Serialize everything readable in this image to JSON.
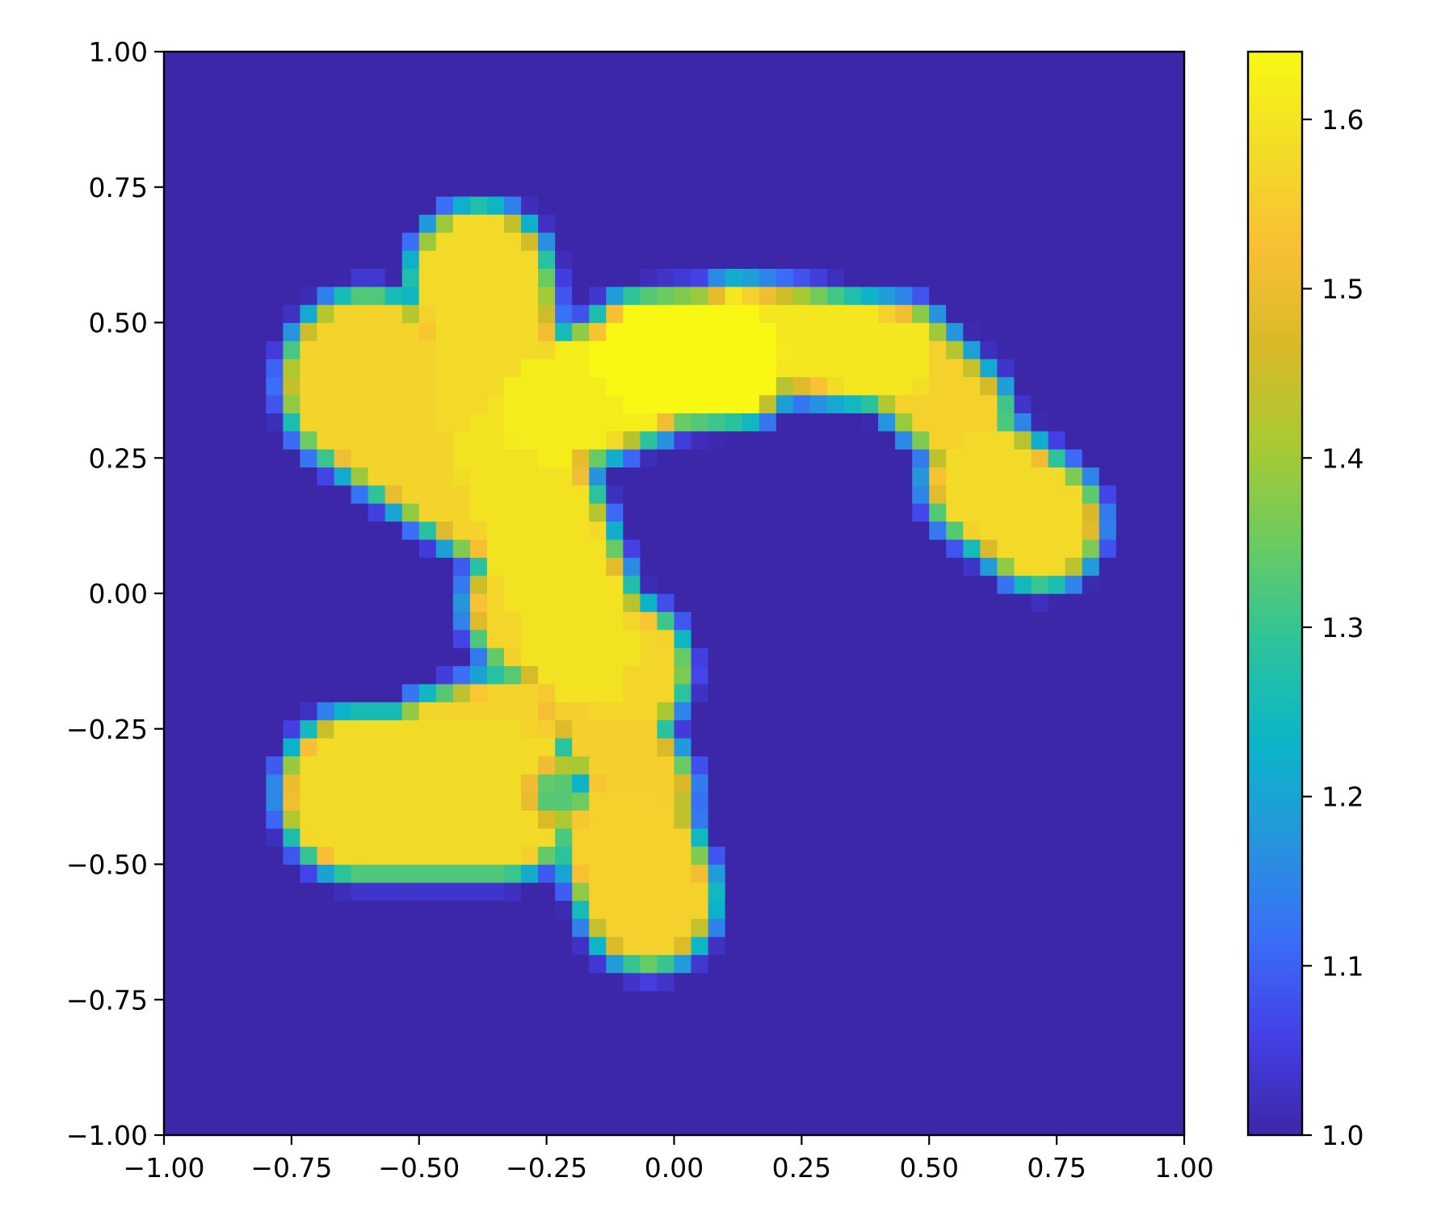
{
  "chart_data": {
    "type": "heatmap",
    "title": "",
    "xlabel": "",
    "ylabel": "",
    "xlim": [
      -1.0,
      1.0
    ],
    "ylim": [
      -1.0,
      1.0
    ],
    "grid": false,
    "x_ticks": [
      -1.0,
      -0.75,
      -0.5,
      -0.25,
      0.0,
      0.25,
      0.5,
      0.75,
      1.0
    ],
    "x_tick_labels": [
      "−1.00",
      "−0.75",
      "−0.50",
      "−0.25",
      "0.00",
      "0.25",
      "0.50",
      "0.75",
      "1.00"
    ],
    "y_ticks": [
      1.0,
      0.75,
      0.5,
      0.25,
      0.0,
      -0.25,
      -0.5,
      -0.75,
      -1.0
    ],
    "y_tick_labels": [
      "1.00",
      "0.75",
      "0.50",
      "0.25",
      "0.00",
      "−0.25",
      "−0.50",
      "−0.75",
      "−1.00"
    ],
    "colorbar": {
      "min": 1.0,
      "max": 1.64,
      "ticks": [
        1.6,
        1.5,
        1.4,
        1.3,
        1.2,
        1.1,
        1.0
      ],
      "tick_labels": [
        "1.6",
        "1.5",
        "1.4",
        "1.3",
        "1.2",
        "1.1",
        "1.0"
      ],
      "colormap": [
        "#3b27a8",
        "#4440e6",
        "#3a6ef7",
        "#2596dc",
        "#0bb5c8",
        "#2cc39b",
        "#6acb61",
        "#a9c932",
        "#d7ba28",
        "#f9bf35",
        "#f2dc26",
        "#f8f814"
      ]
    },
    "background_value": 1.0,
    "peak_value": 1.64,
    "regions": [
      {
        "type": "capsule",
        "a": [
          -0.6,
          0.39
        ],
        "b": [
          -0.34,
          0.22
        ],
        "r": 0.14,
        "v": 1.565
      },
      {
        "type": "capsule",
        "a": [
          -0.38,
          0.58
        ],
        "b": [
          -0.34,
          0.3
        ],
        "r": 0.11,
        "v": 1.575
      },
      {
        "type": "capsule",
        "a": [
          -0.32,
          0.26
        ],
        "b": [
          -0.18,
          -0.1
        ],
        "r": 0.105,
        "v": 1.595
      },
      {
        "type": "capsule",
        "a": [
          -0.24,
          0.34
        ],
        "b": [
          -0.06,
          0.41
        ],
        "r": 0.095,
        "v": 1.615
      },
      {
        "type": "capsule",
        "a": [
          -0.06,
          0.43
        ],
        "b": [
          0.12,
          0.44
        ],
        "r": 0.095,
        "v": 1.64
      },
      {
        "type": "capsule",
        "a": [
          0.12,
          0.48
        ],
        "b": [
          0.44,
          0.44
        ],
        "r": 0.07,
        "v": 1.605
      },
      {
        "type": "capsule",
        "a": [
          0.44,
          0.44
        ],
        "b": [
          0.56,
          0.33
        ],
        "r": 0.07,
        "v": 1.56
      },
      {
        "type": "capsule",
        "a": [
          -0.28,
          -0.02
        ],
        "b": [
          -0.1,
          -0.14
        ],
        "r": 0.1,
        "v": 1.57
      },
      {
        "type": "capsule",
        "a": [
          -0.17,
          -0.18
        ],
        "b": [
          -0.06,
          -0.36
        ],
        "r": 0.07,
        "v": 1.555
      },
      {
        "type": "capsule",
        "a": [
          -0.62,
          -0.37
        ],
        "b": [
          -0.34,
          -0.37
        ],
        "r": 0.125,
        "v": 1.58
      },
      {
        "type": "capsule",
        "a": [
          -0.46,
          -0.28
        ],
        "b": [
          -0.32,
          -0.24
        ],
        "r": 0.07,
        "v": 1.565
      },
      {
        "type": "capsule",
        "a": [
          -0.09,
          -0.46
        ],
        "b": [
          -0.05,
          -0.56
        ],
        "r": 0.105,
        "v": 1.56
      },
      {
        "type": "capsule",
        "a": [
          0.61,
          0.21
        ],
        "b": [
          0.72,
          0.13
        ],
        "r": 0.09,
        "v": 1.575
      },
      {
        "type": "dip",
        "c": [
          -0.23,
          -0.37
        ],
        "r": 0.07,
        "v": 1.33
      }
    ]
  }
}
